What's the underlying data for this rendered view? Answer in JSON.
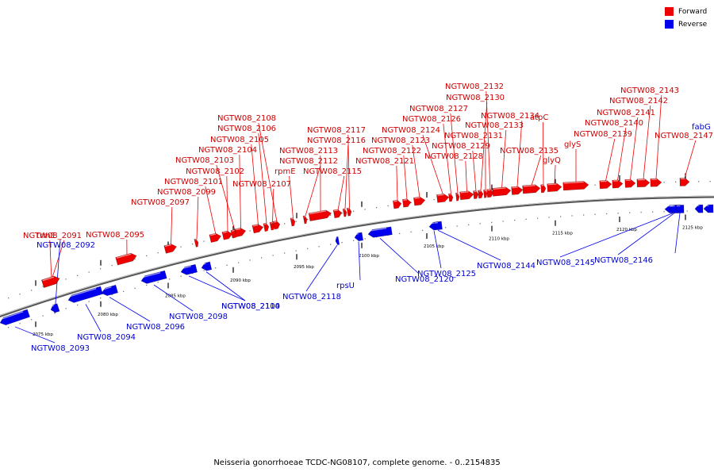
{
  "legend": {
    "items": [
      {
        "label": "Forward",
        "color": "#ee0000"
      },
      {
        "label": "Reverse",
        "color": "#0000ee"
      }
    ]
  },
  "caption": "Neisseria gonorrhoeae TCDC-NG08107, complete genome. - 0..2154835",
  "colors": {
    "forward": "#ee0000",
    "reverse": "#0000ee",
    "backbone": "#555555",
    "label_forward": "#cc0000",
    "label_reverse": "#0000cc"
  },
  "ticks": [
    {
      "label": "2075 kbp"
    },
    {
      "label": "2080 kbp"
    },
    {
      "label": "2085 kbp"
    },
    {
      "label": "2090 kbp"
    },
    {
      "label": "2095 kbp"
    },
    {
      "label": "2100 kbp"
    },
    {
      "label": "2105 kbp"
    },
    {
      "label": "2110 kbp"
    },
    {
      "label": "2115 kbp"
    },
    {
      "label": "2120 kbp"
    },
    {
      "label": "2125 kbp"
    }
  ],
  "genes_forward": [
    {
      "name": "NGTW08_2091"
    },
    {
      "name": "trmE"
    },
    {
      "name": "NGTW08_2095"
    },
    {
      "name": "NGTW08_2097"
    },
    {
      "name": "NGTW08_2099"
    },
    {
      "name": "NGTW08_2101"
    },
    {
      "name": "NGTW08_2102"
    },
    {
      "name": "NGTW08_2103"
    },
    {
      "name": "NGTW08_2104"
    },
    {
      "name": "NGTW08_2105"
    },
    {
      "name": "NGTW08_2106"
    },
    {
      "name": "NGTW08_2107"
    },
    {
      "name": "NGTW08_2108"
    },
    {
      "name": "rpmE"
    },
    {
      "name": "NGTW08_2112"
    },
    {
      "name": "NGTW08_2113"
    },
    {
      "name": "NGTW08_2115"
    },
    {
      "name": "NGTW08_2116"
    },
    {
      "name": "NGTW08_2117"
    },
    {
      "name": "NGTW08_2121"
    },
    {
      "name": "NGTW08_2122"
    },
    {
      "name": "NGTW08_2123"
    },
    {
      "name": "NGTW08_2124"
    },
    {
      "name": "NGTW08_2126"
    },
    {
      "name": "NGTW08_2127"
    },
    {
      "name": "NGTW08_2128"
    },
    {
      "name": "NGTW08_2129"
    },
    {
      "name": "NGTW08_2130"
    },
    {
      "name": "NGTW08_2131"
    },
    {
      "name": "NGTW08_2132"
    },
    {
      "name": "NGTW08_2133"
    },
    {
      "name": "NGTW08_2134"
    },
    {
      "name": "NGTW08_2135"
    },
    {
      "name": "atpC"
    },
    {
      "name": "glyQ"
    },
    {
      "name": "glyS"
    },
    {
      "name": "NGTW08_2139"
    },
    {
      "name": "NGTW08_2140"
    },
    {
      "name": "NGTW08_2141"
    },
    {
      "name": "NGTW08_2142"
    },
    {
      "name": "NGTW08_2143"
    },
    {
      "name": "NGTW08_2147"
    }
  ],
  "genes_reverse": [
    {
      "name": "NGTW08_2092"
    },
    {
      "name": "NGTW08_2093"
    },
    {
      "name": "NGTW08_2094"
    },
    {
      "name": "NGTW08_2096"
    },
    {
      "name": "NGTW08_2098"
    },
    {
      "name": "NGTW08_2100"
    },
    {
      "name": "NGTW08_2114"
    },
    {
      "name": "NGTW08_2118"
    },
    {
      "name": "rpsU"
    },
    {
      "name": "NGTW08_2120"
    },
    {
      "name": "NGTW08_2125"
    },
    {
      "name": "NGTW08_2144"
    },
    {
      "name": "NGTW08_2145"
    },
    {
      "name": "NGTW08_2146"
    },
    {
      "name": "fabG"
    }
  ]
}
